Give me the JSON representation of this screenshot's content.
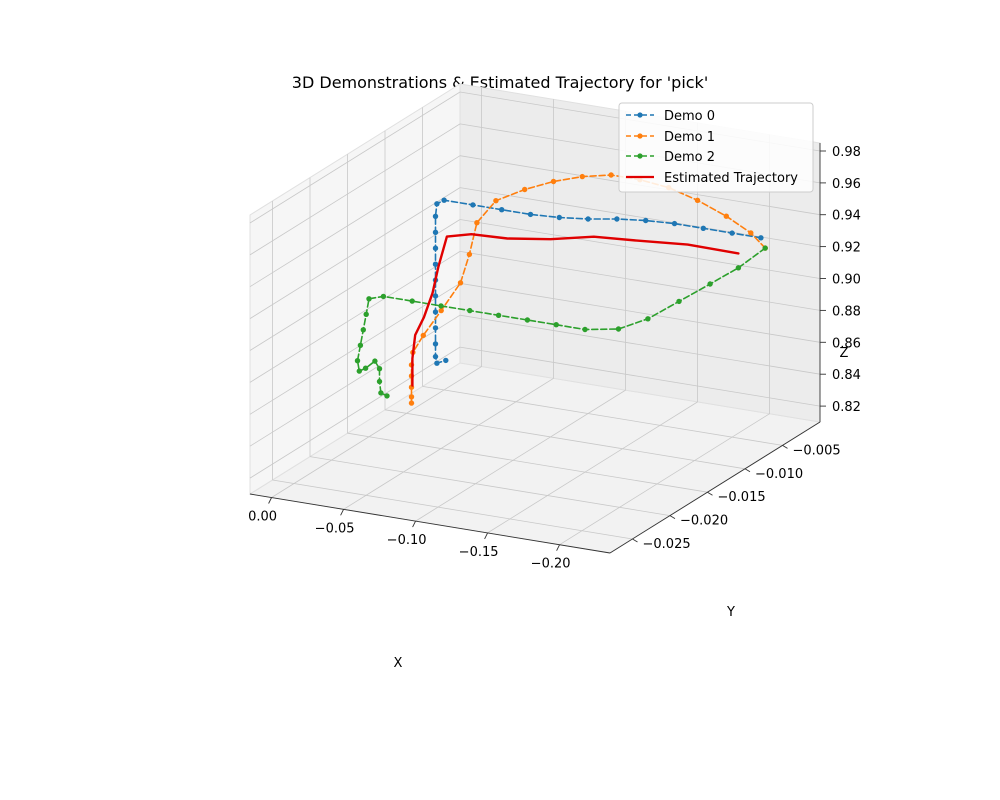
{
  "chart_data": {
    "type": "line3d",
    "title": "3D Demonstrations & Estimated Trajectory for 'pick'",
    "xlabel": "X",
    "ylabel": "Y",
    "zlabel": "Z",
    "xlim": [
      -0.235,
      0.015
    ],
    "ylim": [
      -0.028,
      0.0
    ],
    "zlim": [
      0.81,
      0.985
    ],
    "x_ticks": [
      -0.2,
      -0.15,
      -0.1,
      -0.05,
      0.0
    ],
    "x_tick_labels": [
      "−0.20",
      "−0.15",
      "−0.10",
      "−0.05",
      "0.00"
    ],
    "y_ticks": [
      -0.025,
      -0.02,
      -0.015,
      -0.01,
      -0.005
    ],
    "y_tick_labels": [
      "−0.025",
      "−0.020",
      "−0.015",
      "−0.010",
      "−0.005"
    ],
    "z_ticks": [
      0.82,
      0.84,
      0.86,
      0.88,
      0.9,
      0.92,
      0.94,
      0.96,
      0.98
    ],
    "z_tick_labels": [
      "0.82",
      "0.84",
      "0.86",
      "0.88",
      "0.90",
      "0.92",
      "0.94",
      "0.96",
      "0.98"
    ],
    "grid": true,
    "legend_position": "top-right",
    "series": [
      {
        "name": "Demo 0",
        "color": "#1f77b4",
        "style": "dashed-markers",
        "points": [
          [
            -0.22,
            -0.005,
            0.938
          ],
          [
            -0.2,
            -0.005,
            0.938
          ],
          [
            -0.18,
            -0.005,
            0.938
          ],
          [
            -0.16,
            -0.005,
            0.938
          ],
          [
            -0.14,
            -0.005,
            0.937
          ],
          [
            -0.12,
            -0.005,
            0.935
          ],
          [
            -0.1,
            -0.005,
            0.932
          ],
          [
            -0.08,
            -0.005,
            0.93
          ],
          [
            -0.06,
            -0.005,
            0.929
          ],
          [
            -0.04,
            -0.005,
            0.929
          ],
          [
            -0.02,
            -0.005,
            0.929
          ],
          [
            0.0,
            -0.005,
            0.929
          ],
          [
            0.005,
            -0.005,
            0.926
          ],
          [
            0.006,
            -0.005,
            0.918
          ],
          [
            0.006,
            -0.005,
            0.908
          ],
          [
            0.006,
            -0.005,
            0.898
          ],
          [
            0.006,
            -0.005,
            0.888
          ],
          [
            0.006,
            -0.005,
            0.878
          ],
          [
            0.006,
            -0.005,
            0.868
          ],
          [
            0.006,
            -0.005,
            0.858
          ],
          [
            0.006,
            -0.005,
            0.848
          ],
          [
            0.006,
            -0.005,
            0.838
          ],
          [
            0.006,
            -0.005,
            0.83
          ],
          [
            0.005,
            -0.005,
            0.826
          ],
          [
            0.004,
            -0.004,
            0.825
          ]
        ]
      },
      {
        "name": "Demo 1",
        "color": "#ff7f0e",
        "style": "dashed-markers",
        "points": [
          [
            -0.223,
            -0.005,
            0.932
          ],
          [
            -0.213,
            -0.005,
            0.94
          ],
          [
            -0.196,
            -0.005,
            0.948
          ],
          [
            -0.176,
            -0.005,
            0.955
          ],
          [
            -0.156,
            -0.005,
            0.96
          ],
          [
            -0.136,
            -0.005,
            0.962
          ],
          [
            -0.116,
            -0.005,
            0.962
          ],
          [
            -0.096,
            -0.005,
            0.958
          ],
          [
            -0.076,
            -0.005,
            0.952
          ],
          [
            -0.056,
            -0.005,
            0.944
          ],
          [
            -0.036,
            -0.005,
            0.934
          ],
          [
            -0.028,
            -0.006,
            0.922
          ],
          [
            -0.028,
            -0.007,
            0.905
          ],
          [
            -0.027,
            -0.008,
            0.89
          ],
          [
            -0.024,
            -0.01,
            0.878
          ],
          [
            -0.022,
            -0.012,
            0.868
          ],
          [
            -0.02,
            -0.013,
            0.86
          ],
          [
            -0.019,
            -0.013,
            0.852
          ],
          [
            -0.019,
            -0.013,
            0.845
          ],
          [
            -0.019,
            -0.013,
            0.838
          ],
          [
            -0.019,
            -0.013,
            0.832
          ],
          [
            -0.019,
            -0.013,
            0.828
          ]
        ]
      },
      {
        "name": "Demo 2",
        "color": "#2ca02c",
        "style": "dashed-markers",
        "points": [
          [
            -0.223,
            -0.005,
            0.932
          ],
          [
            -0.22,
            -0.008,
            0.928
          ],
          [
            -0.216,
            -0.011,
            0.926
          ],
          [
            -0.21,
            -0.014,
            0.923
          ],
          [
            -0.204,
            -0.017,
            0.92
          ],
          [
            -0.194,
            -0.019,
            0.918
          ],
          [
            -0.176,
            -0.02,
            0.918
          ],
          [
            -0.156,
            -0.02,
            0.918
          ],
          [
            -0.136,
            -0.02,
            0.918
          ],
          [
            -0.116,
            -0.02,
            0.918
          ],
          [
            -0.096,
            -0.02,
            0.918
          ],
          [
            -0.076,
            -0.02,
            0.918
          ],
          [
            -0.056,
            -0.02,
            0.918
          ],
          [
            -0.036,
            -0.02,
            0.918
          ],
          [
            -0.026,
            -0.02,
            0.915
          ],
          [
            -0.024,
            -0.02,
            0.905
          ],
          [
            -0.022,
            -0.02,
            0.895
          ],
          [
            -0.02,
            -0.02,
            0.885
          ],
          [
            -0.018,
            -0.02,
            0.875
          ],
          [
            -0.014,
            -0.019,
            0.865
          ],
          [
            -0.008,
            -0.017,
            0.86
          ],
          [
            -0.004,
            -0.015,
            0.858
          ],
          [
            -0.002,
            -0.014,
            0.85
          ],
          [
            -0.002,
            -0.014,
            0.842
          ],
          [
            -0.003,
            -0.014,
            0.835
          ],
          [
            -0.002,
            -0.013,
            0.83
          ]
        ]
      },
      {
        "name": "Estimated Trajectory",
        "color": "#e00000",
        "style": "solid",
        "points": [
          [
            -0.22,
            -0.008,
            0.937
          ],
          [
            -0.19,
            -0.009,
            0.941
          ],
          [
            -0.16,
            -0.01,
            0.942
          ],
          [
            -0.13,
            -0.01,
            0.94
          ],
          [
            -0.1,
            -0.01,
            0.934
          ],
          [
            -0.07,
            -0.01,
            0.93
          ],
          [
            -0.045,
            -0.01,
            0.929
          ],
          [
            -0.028,
            -0.01,
            0.925
          ],
          [
            -0.022,
            -0.01,
            0.905
          ],
          [
            -0.018,
            -0.01,
            0.888
          ],
          [
            -0.012,
            -0.01,
            0.872
          ],
          [
            -0.006,
            -0.01,
            0.86
          ],
          [
            -0.004,
            -0.01,
            0.845
          ],
          [
            -0.004,
            -0.01,
            0.835
          ],
          [
            -0.004,
            -0.01,
            0.828
          ]
        ]
      }
    ]
  }
}
